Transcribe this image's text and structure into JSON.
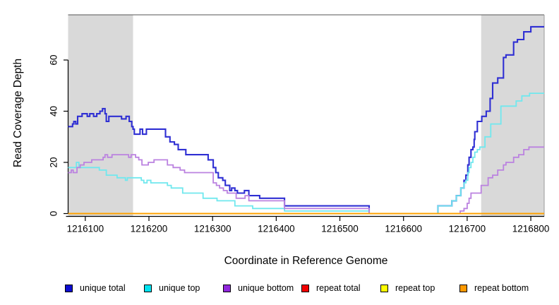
{
  "figure": {
    "type": "read-coverage-plot"
  },
  "chart_data": {
    "type": "line",
    "subtype": "step-after",
    "title": "",
    "xlabel": "Coordinate in Reference Genome",
    "ylabel": "Read Coverage Depth",
    "xlim": [
      1216073,
      1216821
    ],
    "ylim": [
      0,
      77
    ],
    "grid": false,
    "legend_position": "bottom",
    "x_ticks": [
      1216100,
      1216200,
      1216300,
      1216400,
      1216500,
      1216600,
      1216700,
      1216800
    ],
    "y_ticks": [
      0,
      20,
      40,
      60
    ],
    "shaded_regions": [
      {
        "name": "masked-region-left",
        "x0": 1216073,
        "x1": 1216175,
        "color": "#d9d9d9"
      },
      {
        "name": "masked-region-right",
        "x0": 1216722,
        "x1": 1216821,
        "color": "#d9d9d9"
      }
    ],
    "series": [
      {
        "name": "unique total",
        "color": "#2f2fd3",
        "legend_color": "#0d0dd0",
        "points": [
          [
            1216073,
            34
          ],
          [
            1216080,
            35
          ],
          [
            1216082,
            36
          ],
          [
            1216085,
            35
          ],
          [
            1216088,
            38
          ],
          [
            1216095,
            39
          ],
          [
            1216103,
            38
          ],
          [
            1216107,
            39
          ],
          [
            1216113,
            38
          ],
          [
            1216118,
            39
          ],
          [
            1216123,
            40
          ],
          [
            1216127,
            41
          ],
          [
            1216131,
            39
          ],
          [
            1216133,
            36
          ],
          [
            1216137,
            38
          ],
          [
            1216157,
            37
          ],
          [
            1216164,
            38
          ],
          [
            1216169,
            36
          ],
          [
            1216173,
            34
          ],
          [
            1216175,
            33
          ],
          [
            1216177,
            31
          ],
          [
            1216186,
            33
          ],
          [
            1216190,
            31
          ],
          [
            1216196,
            33
          ],
          [
            1216226,
            30
          ],
          [
            1216233,
            28
          ],
          [
            1216240,
            27
          ],
          [
            1216246,
            25
          ],
          [
            1216258,
            23
          ],
          [
            1216293,
            21
          ],
          [
            1216301,
            18
          ],
          [
            1216305,
            16
          ],
          [
            1216309,
            14
          ],
          [
            1216316,
            13
          ],
          [
            1216320,
            11
          ],
          [
            1216327,
            9
          ],
          [
            1216330,
            10
          ],
          [
            1216335,
            9
          ],
          [
            1216339,
            8
          ],
          [
            1216350,
            9
          ],
          [
            1216357,
            7
          ],
          [
            1216374,
            6
          ],
          [
            1216413,
            3
          ],
          [
            1216546,
            0
          ],
          [
            1216654,
            3
          ],
          [
            1216676,
            5
          ],
          [
            1216683,
            7
          ],
          [
            1216690,
            10
          ],
          [
            1216695,
            13
          ],
          [
            1216698,
            15
          ],
          [
            1216701,
            19
          ],
          [
            1216703,
            22
          ],
          [
            1216706,
            25
          ],
          [
            1216709,
            26
          ],
          [
            1216711,
            29
          ],
          [
            1216712,
            32
          ],
          [
            1216716,
            36
          ],
          [
            1216723,
            38
          ],
          [
            1216730,
            40
          ],
          [
            1216736,
            45
          ],
          [
            1216740,
            51
          ],
          [
            1216748,
            53
          ],
          [
            1216757,
            61
          ],
          [
            1216761,
            62
          ],
          [
            1216773,
            67
          ],
          [
            1216779,
            68
          ],
          [
            1216789,
            71
          ],
          [
            1216800,
            73
          ],
          [
            1216821,
            73
          ]
        ]
      },
      {
        "name": "unique top",
        "color": "#70e8ee",
        "legend_color": "#00e3f0",
        "points": [
          [
            1216073,
            18
          ],
          [
            1216086,
            20
          ],
          [
            1216090,
            18
          ],
          [
            1216122,
            17
          ],
          [
            1216133,
            15
          ],
          [
            1216150,
            14
          ],
          [
            1216163,
            13
          ],
          [
            1216166,
            14
          ],
          [
            1216175,
            14
          ],
          [
            1216188,
            13
          ],
          [
            1216192,
            12
          ],
          [
            1216197,
            13
          ],
          [
            1216203,
            12
          ],
          [
            1216229,
            11
          ],
          [
            1216235,
            10
          ],
          [
            1216253,
            8
          ],
          [
            1216285,
            6
          ],
          [
            1216307,
            5
          ],
          [
            1216335,
            3
          ],
          [
            1216363,
            2
          ],
          [
            1216413,
            1
          ],
          [
            1216546,
            0
          ],
          [
            1216654,
            3
          ],
          [
            1216676,
            5
          ],
          [
            1216683,
            7
          ],
          [
            1216690,
            10
          ],
          [
            1216695,
            12
          ],
          [
            1216698,
            13
          ],
          [
            1216701,
            16
          ],
          [
            1216703,
            18
          ],
          [
            1216706,
            20
          ],
          [
            1216709,
            22
          ],
          [
            1216712,
            24
          ],
          [
            1216716,
            25
          ],
          [
            1216720,
            26
          ],
          [
            1216728,
            30
          ],
          [
            1216737,
            35
          ],
          [
            1216753,
            42
          ],
          [
            1216777,
            44
          ],
          [
            1216786,
            46
          ],
          [
            1216798,
            47
          ],
          [
            1216821,
            47
          ]
        ]
      },
      {
        "name": "unique bottom",
        "color": "#bb82e0",
        "legend_color": "#9128dd",
        "points": [
          [
            1216073,
            16
          ],
          [
            1216078,
            17
          ],
          [
            1216081,
            16
          ],
          [
            1216087,
            18
          ],
          [
            1216092,
            19
          ],
          [
            1216098,
            20
          ],
          [
            1216110,
            21
          ],
          [
            1216128,
            22
          ],
          [
            1216131,
            23
          ],
          [
            1216135,
            22
          ],
          [
            1216142,
            23
          ],
          [
            1216168,
            22
          ],
          [
            1216172,
            23
          ],
          [
            1216179,
            22
          ],
          [
            1216184,
            21
          ],
          [
            1216189,
            19
          ],
          [
            1216199,
            20
          ],
          [
            1216208,
            21
          ],
          [
            1216229,
            19
          ],
          [
            1216238,
            18
          ],
          [
            1216249,
            17
          ],
          [
            1216256,
            16
          ],
          [
            1216301,
            12
          ],
          [
            1216306,
            11
          ],
          [
            1216311,
            10
          ],
          [
            1216317,
            9
          ],
          [
            1216323,
            8
          ],
          [
            1216337,
            6
          ],
          [
            1216351,
            7
          ],
          [
            1216357,
            5
          ],
          [
            1216413,
            2
          ],
          [
            1216546,
            0
          ],
          [
            1216689,
            1
          ],
          [
            1216695,
            2
          ],
          [
            1216700,
            4
          ],
          [
            1216703,
            6
          ],
          [
            1216706,
            8
          ],
          [
            1216722,
            11
          ],
          [
            1216733,
            14
          ],
          [
            1216740,
            15
          ],
          [
            1216748,
            17
          ],
          [
            1216757,
            19
          ],
          [
            1216761,
            20
          ],
          [
            1216773,
            22
          ],
          [
            1216781,
            23
          ],
          [
            1216789,
            25
          ],
          [
            1216797,
            26
          ],
          [
            1216821,
            26
          ]
        ]
      },
      {
        "name": "repeat total",
        "color": "#e60000",
        "legend_color": "#f20000",
        "points": [
          [
            1216073,
            0
          ],
          [
            1216821,
            0
          ]
        ]
      },
      {
        "name": "repeat top",
        "color": "#ffff00",
        "legend_color": "#ffff00",
        "points": [
          [
            1216073,
            0
          ],
          [
            1216821,
            0
          ]
        ]
      },
      {
        "name": "repeat bottom",
        "color": "#ff9e00",
        "legend_color": "#ff9900",
        "points": [
          [
            1216073,
            0
          ],
          [
            1216821,
            0
          ]
        ]
      }
    ]
  }
}
